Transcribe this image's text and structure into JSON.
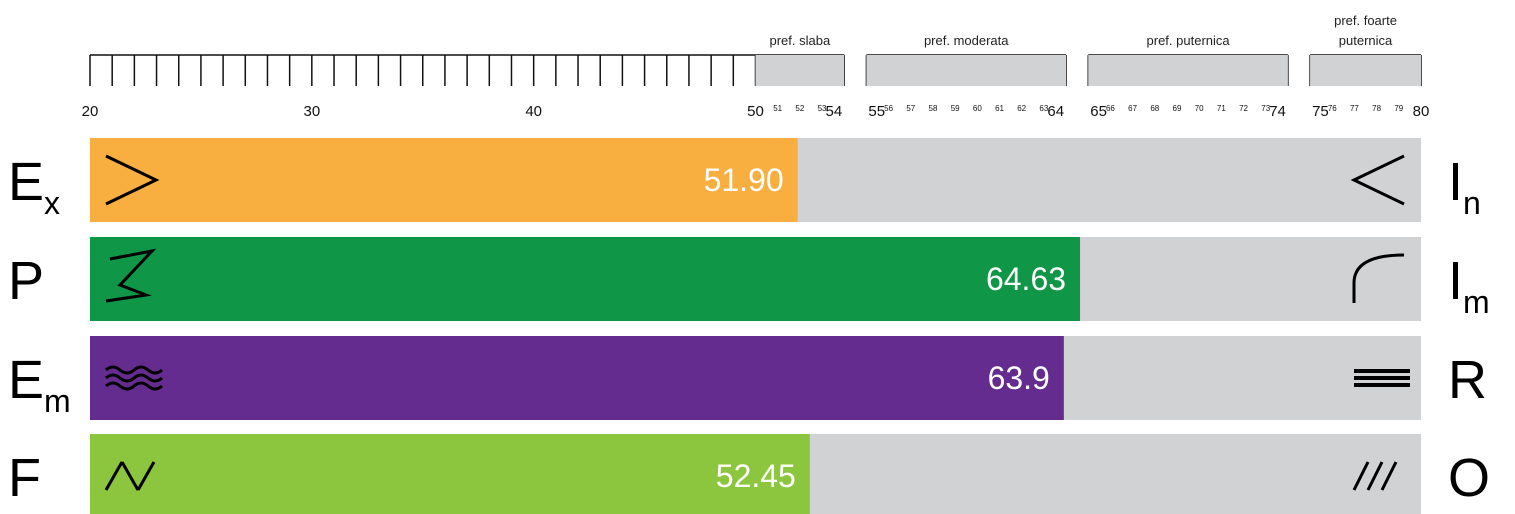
{
  "colors": {
    "track": "#d1d2d4",
    "band_fill": "#d1d2d4",
    "ruler_stroke": "#111111"
  },
  "chart_data": {
    "type": "bar",
    "orientation": "horizontal",
    "xlim": [
      20,
      80
    ],
    "ticks": {
      "major": [
        "20",
        "30",
        "40",
        "50",
        "54",
        "55",
        "64",
        "65",
        "74",
        "75",
        "80"
      ],
      "minor": [
        "51",
        "52",
        "53",
        "56",
        "57",
        "58",
        "59",
        "60",
        "61",
        "62",
        "63",
        "66",
        "67",
        "68",
        "69",
        "70",
        "71",
        "72",
        "73",
        "76",
        "77",
        "78",
        "79"
      ]
    },
    "preference_bands": [
      {
        "label": "pref. slaba",
        "range": [
          50,
          54
        ]
      },
      {
        "label": "pref. moderata",
        "range": [
          55,
          64
        ]
      },
      {
        "label": "pref. puternica",
        "range": [
          65,
          74
        ]
      },
      {
        "label": "pref. foarte",
        "label2": "puternica",
        "range": [
          75,
          80
        ]
      }
    ],
    "rows": [
      {
        "left_main": "E",
        "left_sub": "x",
        "right_main": "I",
        "right_sub": "n",
        "value": 51.9,
        "value_label": "51.90",
        "color": "#f9ae40",
        "left_icon": "greater-than-icon",
        "right_icon": "less-than-icon"
      },
      {
        "left_main": "P",
        "left_sub": "",
        "right_main": "I",
        "right_sub": "m",
        "value": 64.63,
        "value_label": "64.63",
        "color": "#0f9647",
        "left_icon": "zigzag-icon",
        "right_icon": "arc-icon"
      },
      {
        "left_main": "E",
        "left_sub": "m",
        "right_main": "R",
        "right_sub": "",
        "value": 63.9,
        "value_label": "63.9",
        "color": "#652c8f",
        "left_icon": "waves-icon",
        "right_icon": "triple-lines-icon"
      },
      {
        "left_main": "F",
        "left_sub": "",
        "right_main": "O",
        "right_sub": "",
        "value": 52.45,
        "value_label": "52.45",
        "color": "#8cc63f",
        "left_icon": "slash-backslash-slash-icon",
        "right_icon": "triple-slash-icon"
      }
    ]
  }
}
